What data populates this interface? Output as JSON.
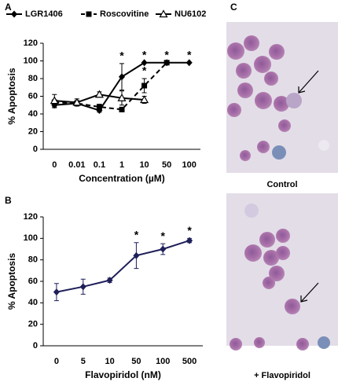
{
  "panels": {
    "a": "A",
    "b": "B",
    "c": "C",
    "control": "Control",
    "treated": "+ Flavopiridol"
  },
  "chart_data": [
    {
      "type": "line",
      "y_label": "% Apoptosis",
      "x_label": "Concentration (µM)",
      "categories": [
        "0",
        "0.01",
        "0.1",
        "1",
        "10",
        "50",
        "100"
      ],
      "ylim": [
        0,
        120
      ],
      "yticks": [
        0,
        20,
        40,
        60,
        80,
        100,
        120
      ],
      "series": [
        {
          "name": "LGR1406",
          "color": "#000000",
          "marker": "diamond",
          "line_style": "solid",
          "values": [
            50,
            52,
            44,
            82,
            98,
            98,
            98
          ],
          "errors": [
            3,
            3,
            2,
            15,
            null,
            null,
            null
          ],
          "sig_labels": [
            null,
            null,
            null,
            "*",
            "*",
            "*",
            "*"
          ]
        },
        {
          "name": "Roscovitine",
          "color": "#000000",
          "marker": "square",
          "line_style": "dashed",
          "values": [
            53,
            52,
            48,
            45,
            72,
            98,
            null
          ],
          "errors": [
            3,
            3,
            3,
            null,
            8,
            null,
            null
          ],
          "sig_labels": [
            null,
            null,
            null,
            null,
            "*",
            null,
            null
          ]
        },
        {
          "name": "NU6102",
          "color": "#000000",
          "marker": "triangle",
          "line_style": "solid",
          "values": [
            55,
            53,
            62,
            58,
            56,
            null,
            null
          ],
          "errors": [
            7,
            4,
            3,
            8,
            4,
            null,
            null
          ],
          "sig_labels": [
            null,
            null,
            null,
            null,
            null,
            null,
            null
          ]
        }
      ]
    },
    {
      "type": "line",
      "y_label": "% Apoptosis",
      "x_label": "Flavopiridol (nM)",
      "categories": [
        "0",
        "5",
        "10",
        "50",
        "100",
        "500"
      ],
      "ylim": [
        0,
        120
      ],
      "yticks": [
        0,
        20,
        40,
        60,
        80,
        100,
        120
      ],
      "color": "#1f1f5a",
      "marker": "diamond",
      "line_style": "solid",
      "values": [
        50,
        55,
        61,
        84,
        90,
        98
      ],
      "errors": [
        8,
        7,
        2,
        12,
        5,
        2
      ],
      "sig_labels": [
        null,
        null,
        null,
        "*",
        "*",
        "*"
      ]
    }
  ]
}
